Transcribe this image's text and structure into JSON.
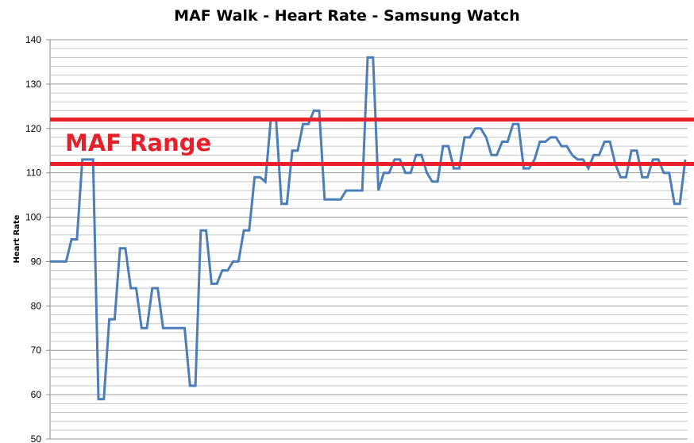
{
  "chart_data": {
    "type": "line",
    "title": "MAF Walk - Heart Rate - Samsung Watch",
    "xlabel": "",
    "ylabel": "Heart Rate",
    "ylim": [
      50,
      140
    ],
    "yticks": [
      50,
      60,
      70,
      80,
      90,
      100,
      110,
      120,
      130,
      140
    ],
    "grid": {
      "major_step": 10,
      "minor_step": 2
    },
    "series_color": "#4a7ebb",
    "reference_lines": [
      {
        "value": 122,
        "color": "#e8202a"
      },
      {
        "value": 112,
        "color": "#e8202a"
      }
    ],
    "annotation": {
      "text": "MAF Range",
      "color": "#e8202a"
    },
    "series": [
      {
        "values": [
          90,
          90,
          90,
          90,
          95,
          95,
          113,
          113,
          113,
          59,
          59,
          77,
          77,
          93,
          93,
          84,
          84,
          75,
          75,
          84,
          84,
          75,
          75,
          75,
          75,
          75,
          62,
          62,
          97,
          97,
          85,
          85,
          88,
          88,
          90,
          90,
          97,
          97,
          109,
          109,
          108,
          122,
          122,
          103,
          103,
          115,
          115,
          121,
          121,
          124,
          124,
          104,
          104,
          104,
          104,
          106,
          106,
          106,
          106,
          136,
          136,
          106,
          110,
          110,
          113,
          113,
          110,
          110,
          114,
          114,
          110,
          108,
          108,
          116,
          116,
          111,
          111,
          118,
          118,
          120,
          120,
          118,
          114,
          114,
          117,
          117,
          121,
          121,
          111,
          111,
          113,
          117,
          117,
          118,
          118,
          116,
          116,
          114,
          113,
          113,
          111,
          114,
          114,
          117,
          117,
          112,
          109,
          109,
          115,
          115,
          109,
          109,
          113,
          113,
          110,
          110,
          103,
          103,
          113
        ]
      }
    ]
  }
}
